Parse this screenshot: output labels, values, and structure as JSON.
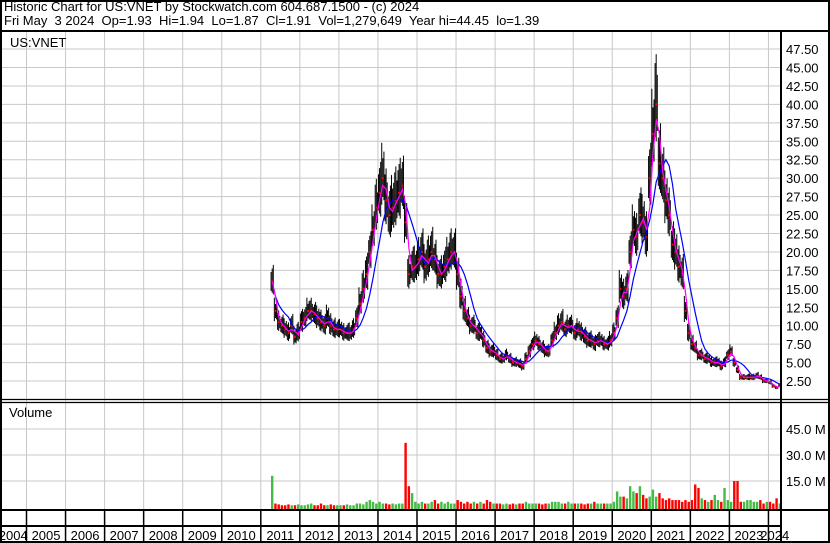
{
  "header": {
    "title": "Historic Chart for US:VNET by Stockwatch.com 604.687.1500 - (c) 2024",
    "quote": "Fri May  3 2024  Op=1.93  Hi=1.94  Lo=1.87  Cl=1.91  Vol=1,279,649  Year hi=44.45  lo=1.39"
  },
  "chart_data": [
    {
      "type": "line",
      "title": "US:VNET",
      "x_axis_years": [
        "2004",
        "2005",
        "2006",
        "2007",
        "2008",
        "2009",
        "2010",
        "2011",
        "2012",
        "2013",
        "2014",
        "2015",
        "2016",
        "2017",
        "2018",
        "2019",
        "2020",
        "2021",
        "2022",
        "2023",
        "2024"
      ],
      "y_ticks": [
        "47.50",
        "45.00",
        "42.50",
        "40.00",
        "37.50",
        "35.00",
        "32.50",
        "30.00",
        "27.50",
        "25.00",
        "22.50",
        "20.00",
        "17.50",
        "15.00",
        "12.50",
        "10.00",
        "7.50",
        "5.00",
        "2.50"
      ],
      "ylim": [
        0,
        47.5
      ],
      "grid": true,
      "start_month": "2011-04",
      "monthly_close": [
        16,
        12,
        10.5,
        10,
        9.5,
        9,
        10,
        8.5,
        9,
        10.5,
        11,
        12,
        12,
        11.5,
        11,
        10.5,
        10,
        11,
        10,
        9.5,
        9.5,
        9.5,
        9,
        9,
        9,
        9.5,
        11,
        13,
        15,
        17,
        20,
        23,
        26,
        28,
        30,
        27,
        25,
        26,
        27,
        28,
        29,
        24,
        17,
        18,
        18,
        19,
        20,
        18,
        19,
        20,
        19,
        17,
        17,
        18,
        19,
        20,
        20,
        17,
        14,
        12,
        11,
        10,
        10,
        9,
        9,
        8,
        7,
        6.5,
        6.5,
        6,
        5.5,
        5.5,
        6,
        5.5,
        5,
        5,
        4.8,
        4.5,
        5.5,
        6.5,
        7.5,
        8,
        7.5,
        7,
        6.5,
        6.5,
        8,
        9,
        10,
        10.5,
        9.5,
        10,
        10,
        9,
        9.5,
        9,
        8.5,
        8,
        8,
        7.5,
        8,
        8,
        7.5,
        7.5,
        8,
        9,
        11,
        15,
        14,
        15,
        20,
        23,
        22,
        25,
        24,
        22,
        30,
        36,
        40,
        32,
        30,
        27,
        25,
        21,
        20,
        18,
        17,
        12,
        9,
        7.5,
        7,
        6,
        6,
        5.5,
        5.5,
        5,
        5,
        5,
        4.5,
        5,
        6,
        6.5,
        5,
        4,
        3,
        3,
        3,
        3,
        3,
        3.2,
        3,
        2.5,
        2.5,
        2.3,
        1.8,
        1.6,
        1.9
      ],
      "series_colors": {
        "price_bars": "#000000",
        "close_marks": "#ff0000",
        "short_ma": "#ff00ff",
        "long_ma": "#0000ff"
      }
    },
    {
      "type": "bar",
      "title": "Volume",
      "y_ticks": [
        "45.0 M",
        "30.0 M",
        "15.0 M"
      ],
      "ylim_millions": [
        0,
        55
      ],
      "start_month": "2011-04",
      "monthly_volume_millions": [
        18,
        2,
        1.5,
        1,
        1,
        1.5,
        1,
        1,
        1.5,
        1,
        1,
        1.5,
        2,
        1,
        1,
        2,
        1,
        1,
        1.5,
        1,
        1,
        1,
        1,
        1.5,
        1,
        1,
        2,
        2,
        1.5,
        3,
        4,
        3,
        2,
        3,
        2,
        2,
        1.5,
        2,
        1.5,
        2,
        2,
        37,
        12,
        8,
        3,
        2,
        3,
        2,
        2,
        3,
        4,
        2,
        3,
        2,
        3,
        2,
        2,
        4,
        3,
        2,
        3,
        2,
        3,
        2,
        3,
        2,
        4,
        3,
        2,
        2,
        2,
        1.5,
        2,
        1.5,
        2,
        1.5,
        2,
        2,
        3,
        2,
        2,
        2,
        2,
        1.5,
        2,
        2,
        3,
        3,
        3,
        2,
        2,
        3,
        2,
        2,
        2,
        2,
        1.5,
        2,
        2,
        3,
        2,
        2,
        2,
        2,
        2,
        3,
        9,
        6,
        6,
        5,
        12,
        9,
        8,
        12,
        7,
        5,
        6,
        10,
        6,
        8,
        5,
        4,
        5,
        4,
        4,
        4,
        3,
        4,
        3,
        4,
        13,
        11,
        5,
        4,
        3,
        4,
        7,
        4,
        3,
        11,
        4,
        3,
        15,
        15,
        3,
        3,
        4,
        4,
        3,
        3,
        4,
        2,
        3,
        3,
        2,
        5,
        2
      ],
      "colors": {
        "up": "#44bb44",
        "down": "#ff0000"
      }
    }
  ]
}
